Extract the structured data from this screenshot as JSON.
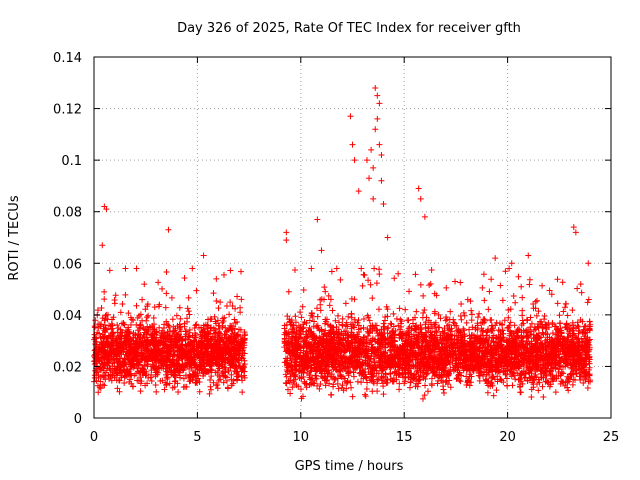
{
  "chart_data": {
    "type": "scatter",
    "title": "Day 326 of 2025, Rate Of TEC Index for receiver gfth",
    "xlabel": "GPS time / hours",
    "ylabel": "ROTI / TECUs",
    "xlim": [
      0,
      25
    ],
    "ylim": [
      0,
      0.14
    ],
    "xticks": [
      0,
      5,
      10,
      15,
      20,
      25
    ],
    "yticks": [
      0,
      0.02,
      0.04,
      0.06,
      0.08,
      0.1,
      0.12,
      0.14
    ],
    "grid": true,
    "marker": "plus",
    "color": "#ff0000",
    "segments": [
      {
        "x_start": 0.0,
        "x_end": 7.3,
        "y_median": 0.025,
        "y_spread": 0.012
      },
      {
        "x_start": 9.2,
        "x_end": 24.0,
        "y_median": 0.025,
        "y_spread": 0.013
      }
    ],
    "notable_points": [
      {
        "x": 0.5,
        "y": 0.082
      },
      {
        "x": 0.6,
        "y": 0.081
      },
      {
        "x": 0.4,
        "y": 0.067
      },
      {
        "x": 3.6,
        "y": 0.073
      },
      {
        "x": 5.3,
        "y": 0.063
      },
      {
        "x": 9.3,
        "y": 0.072
      },
      {
        "x": 9.3,
        "y": 0.069
      },
      {
        "x": 10.8,
        "y": 0.077
      },
      {
        "x": 11.0,
        "y": 0.065
      },
      {
        "x": 12.4,
        "y": 0.117
      },
      {
        "x": 12.5,
        "y": 0.106
      },
      {
        "x": 12.6,
        "y": 0.1
      },
      {
        "x": 12.8,
        "y": 0.088
      },
      {
        "x": 13.2,
        "y": 0.1
      },
      {
        "x": 13.3,
        "y": 0.093
      },
      {
        "x": 13.4,
        "y": 0.104
      },
      {
        "x": 13.5,
        "y": 0.085
      },
      {
        "x": 13.6,
        "y": 0.128
      },
      {
        "x": 13.7,
        "y": 0.125
      },
      {
        "x": 13.8,
        "y": 0.122
      },
      {
        "x": 13.7,
        "y": 0.116
      },
      {
        "x": 13.6,
        "y": 0.112
      },
      {
        "x": 13.8,
        "y": 0.106
      },
      {
        "x": 13.9,
        "y": 0.102
      },
      {
        "x": 13.5,
        "y": 0.097
      },
      {
        "x": 13.9,
        "y": 0.092
      },
      {
        "x": 14.0,
        "y": 0.083
      },
      {
        "x": 14.2,
        "y": 0.07
      },
      {
        "x": 15.7,
        "y": 0.089
      },
      {
        "x": 15.8,
        "y": 0.085
      },
      {
        "x": 16.0,
        "y": 0.078
      },
      {
        "x": 19.4,
        "y": 0.062
      },
      {
        "x": 20.2,
        "y": 0.06
      },
      {
        "x": 21.0,
        "y": 0.063
      },
      {
        "x": 23.2,
        "y": 0.074
      },
      {
        "x": 23.3,
        "y": 0.072
      },
      {
        "x": 23.9,
        "y": 0.06
      }
    ]
  }
}
